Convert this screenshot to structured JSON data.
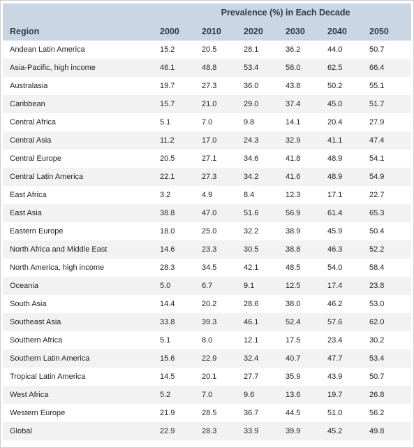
{
  "table": {
    "group_header": "Prevalence (%) in Each Decade",
    "columns": [
      "Region",
      "2000",
      "2010",
      "2020",
      "2030",
      "2040",
      "2050"
    ],
    "rows": [
      {
        "region": "Andean Latin America",
        "values": [
          "15.2",
          "20.5",
          "28.1",
          "36.2",
          "44.0",
          "50.7"
        ]
      },
      {
        "region": "Asia-Pacific, high income",
        "values": [
          "46.1",
          "48.8",
          "53.4",
          "58.0",
          "62.5",
          "66.4"
        ]
      },
      {
        "region": "Australasia",
        "values": [
          "19.7",
          "27.3",
          "36.0",
          "43.8",
          "50.2",
          "55.1"
        ]
      },
      {
        "region": "Caribbean",
        "values": [
          "15.7",
          "21.0",
          "29.0",
          "37.4",
          "45.0",
          "51.7"
        ]
      },
      {
        "region": "Central Africa",
        "values": [
          "5.1",
          "7.0",
          "9.8",
          "14.1",
          "20.4",
          "27.9"
        ]
      },
      {
        "region": "Central Asia",
        "values": [
          "11.2",
          "17.0",
          "24.3",
          "32.9",
          "41.1",
          "47.4"
        ]
      },
      {
        "region": "Central Europe",
        "values": [
          "20.5",
          "27.1",
          "34.6",
          "41.8",
          "48.9",
          "54.1"
        ]
      },
      {
        "region": "Central Latin America",
        "values": [
          "22.1",
          "27.3",
          "34.2",
          "41.6",
          "48.9",
          "54.9"
        ]
      },
      {
        "region": "East Africa",
        "values": [
          "3.2",
          "4.9",
          "8.4",
          "12.3",
          "17.1",
          "22.7"
        ]
      },
      {
        "region": "East Asia",
        "values": [
          "38.8",
          "47.0",
          "51.6",
          "56.9",
          "61.4",
          "65.3"
        ]
      },
      {
        "region": "Eastern Europe",
        "values": [
          "18.0",
          "25.0",
          "32.2",
          "38.9",
          "45.9",
          "50.4"
        ]
      },
      {
        "region": "North Africa and Middle East",
        "values": [
          "14.6",
          "23.3",
          "30.5",
          "38.8",
          "46.3",
          "52.2"
        ]
      },
      {
        "region": "North America, high income",
        "values": [
          "28.3",
          "34.5",
          "42.1",
          "48.5",
          "54.0",
          "58.4"
        ]
      },
      {
        "region": "Oceania",
        "values": [
          "5.0",
          "6.7",
          "9.1",
          "12.5",
          "17.4",
          "23.8"
        ]
      },
      {
        "region": "South Asia",
        "values": [
          "14.4",
          "20.2",
          "28.6",
          "38.0",
          "46.2",
          "53.0"
        ]
      },
      {
        "region": "Southeast Asia",
        "values": [
          "33.8",
          "39.3",
          "46.1",
          "52.4",
          "57.6",
          "62.0"
        ]
      },
      {
        "region": "Southern Africa",
        "values": [
          "5.1",
          "8.0",
          "12.1",
          "17.5",
          "23.4",
          "30.2"
        ]
      },
      {
        "region": "Southern Latin America",
        "values": [
          "15.6",
          "22.9",
          "32.4",
          "40.7",
          "47.7",
          "53.4"
        ]
      },
      {
        "region": "Tropical Latin America",
        "values": [
          "14.5",
          "20.1",
          "27.7",
          "35.9",
          "43.9",
          "50.7"
        ]
      },
      {
        "region": "West Africa",
        "values": [
          "5.2",
          "7.0",
          "9.6",
          "13.6",
          "19.7",
          "26.8"
        ]
      },
      {
        "region": "Western Europe",
        "values": [
          "21.9",
          "28.5",
          "36.7",
          "44.5",
          "51.0",
          "56.2"
        ]
      },
      {
        "region": "Global",
        "values": [
          "22.9",
          "28.3",
          "33.9",
          "39.9",
          "45.2",
          "49.8"
        ]
      }
    ]
  }
}
